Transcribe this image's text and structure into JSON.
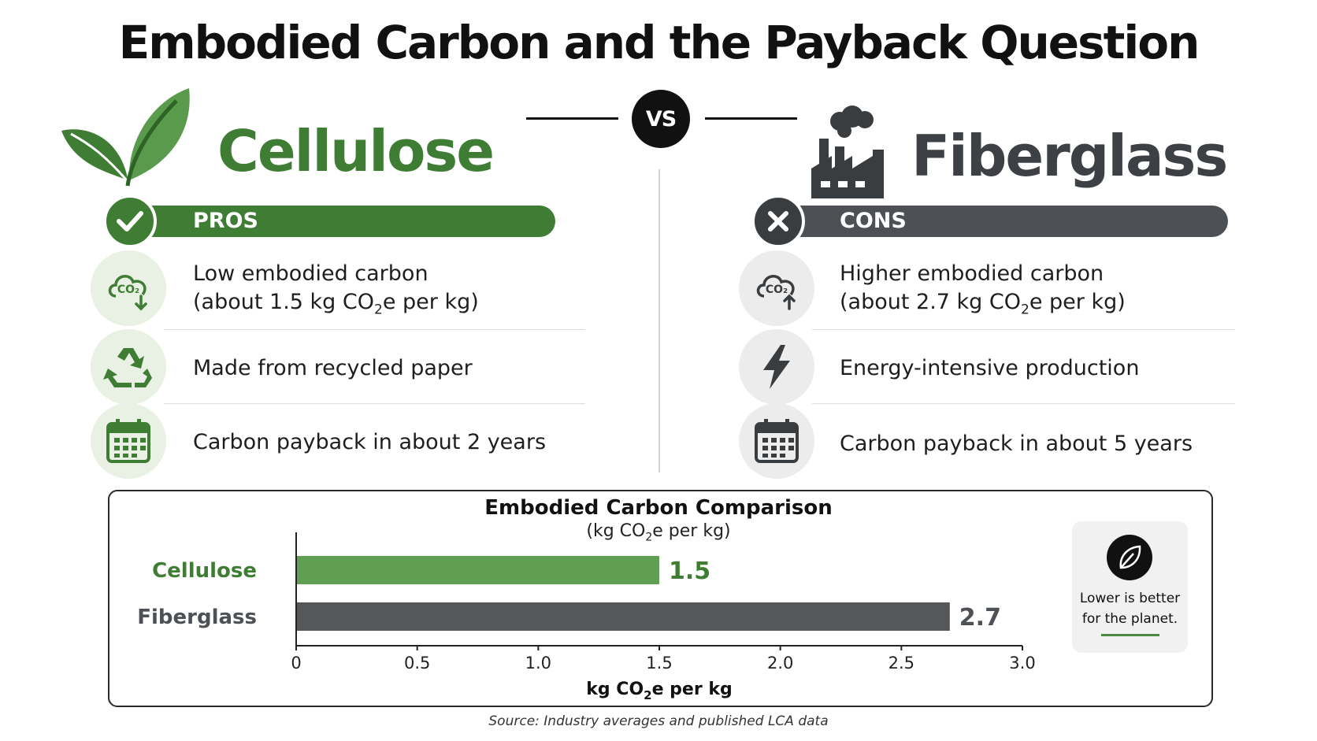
{
  "title": "Embodied Carbon and the Payback Question",
  "vs_label": "VS",
  "colors": {
    "cellulose": "#3f7d34",
    "cellulose_bar": "#5f9e53",
    "fiberglass": "#4d5155",
    "fiberglass_bar": "#555759",
    "circle_green": "#e8f1e4",
    "circle_gray": "#ececec"
  },
  "left": {
    "name": "Cellulose",
    "icon": "leaf-icon",
    "band_label": "PROS",
    "band_icon": "check-icon",
    "rows": [
      {
        "icon": "co2-down-icon",
        "line1": "Low embodied carbon",
        "line2_prefix": "(about 1.5 kg CO",
        "line2_sub": "2",
        "line2_suffix": "e per kg)"
      },
      {
        "icon": "recycle-icon",
        "line1": "Made from recycled paper"
      },
      {
        "icon": "calendar-icon",
        "line1": "Carbon payback in about 2 years"
      }
    ]
  },
  "right": {
    "name": "Fiberglass",
    "icon": "factory-icon",
    "band_label": "CONS",
    "band_icon": "x-icon",
    "rows": [
      {
        "icon": "co2-up-icon",
        "line1": "Higher embodied carbon",
        "line2_prefix": "(about 2.7 kg CO",
        "line2_sub": "2",
        "line2_suffix": "e per kg)"
      },
      {
        "icon": "lightning-icon",
        "line1": "Energy-intensive production"
      },
      {
        "icon": "calendar-icon",
        "line1": "Carbon payback in about 5 years"
      }
    ]
  },
  "chart_data": {
    "type": "bar",
    "orientation": "horizontal",
    "title": "Embodied Carbon Comparison",
    "subtitle_prefix": "(kg CO",
    "subtitle_sub": "2",
    "subtitle_suffix": "e per kg)",
    "categories": [
      "Cellulose",
      "Fiberglass"
    ],
    "values": [
      1.5,
      2.7
    ],
    "value_labels": [
      "1.5",
      "2.7"
    ],
    "xlim": [
      0,
      3.0
    ],
    "xticks": [
      0,
      0.5,
      1.0,
      1.5,
      2.0,
      2.5,
      3.0
    ],
    "xtick_labels": [
      "0",
      "0.5",
      "1.0",
      "1.5",
      "2.0",
      "2.5",
      "3.0"
    ],
    "xlabel_prefix": "kg CO",
    "xlabel_sub": "2",
    "xlabel_suffix": "e per kg",
    "grid": false,
    "legend": "none"
  },
  "note": {
    "icon": "leaf-icon",
    "line1": "Lower is better",
    "line2": "for the planet."
  },
  "source": "Source: Industry averages and published LCA data"
}
